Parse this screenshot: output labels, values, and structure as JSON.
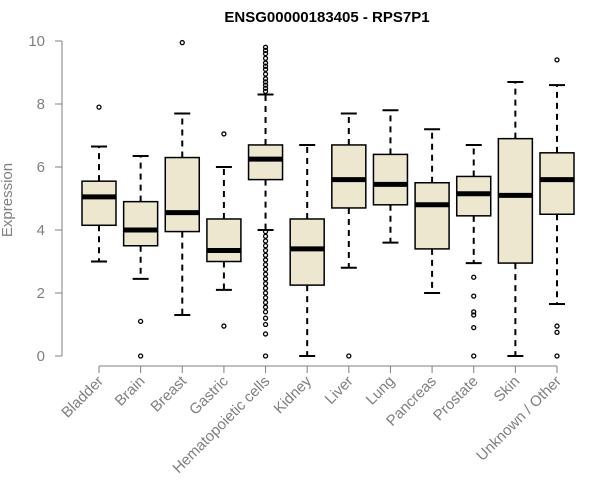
{
  "chart_data": {
    "type": "boxplot",
    "title": "ENSG00000183405 - RPS7P1",
    "xlabel": "",
    "ylabel": "Expression",
    "ylim": [
      0,
      10
    ],
    "yticks": [
      0,
      2,
      4,
      6,
      8,
      10
    ],
    "grid": false,
    "legend": "none",
    "colors": {
      "box_fill": "#ede7cf",
      "stroke": "#000000",
      "axis": "#7f7f7f"
    },
    "categories": [
      "Bladder",
      "Brain",
      "Breast",
      "Gastric",
      "Hematopoietic cells",
      "Kidney",
      "Liver",
      "Lung",
      "Pancreas",
      "Prostate",
      "Skin",
      "Unknown / Other"
    ],
    "boxes": [
      {
        "category": "Bladder",
        "lower_whisker": 3.0,
        "q1": 4.15,
        "median": 5.05,
        "q3": 5.55,
        "upper_whisker": 6.65,
        "outliers": [
          7.9
        ]
      },
      {
        "category": "Brain",
        "lower_whisker": 2.45,
        "q1": 3.5,
        "median": 4.0,
        "q3": 4.9,
        "upper_whisker": 6.35,
        "outliers": [
          1.1,
          0.0
        ]
      },
      {
        "category": "Breast",
        "lower_whisker": 1.3,
        "q1": 3.95,
        "median": 4.55,
        "q3": 6.3,
        "upper_whisker": 7.7,
        "outliers": [
          9.95
        ]
      },
      {
        "category": "Gastric",
        "lower_whisker": 2.1,
        "q1": 3.0,
        "median": 3.35,
        "q3": 4.35,
        "upper_whisker": 6.0,
        "outliers": [
          7.05,
          0.95
        ]
      },
      {
        "category": "Hematopoietic cells",
        "lower_whisker": 4.0,
        "q1": 5.6,
        "median": 6.25,
        "q3": 6.7,
        "upper_whisker": 8.3,
        "outliers": [
          9.8,
          9.7,
          9.6,
          9.45,
          9.3,
          9.2,
          9.1,
          8.95,
          8.8,
          8.7,
          8.6,
          8.5,
          8.4,
          3.95,
          3.8,
          3.65,
          3.5,
          3.35,
          3.2,
          3.05,
          2.9,
          2.75,
          2.6,
          2.45,
          2.3,
          2.15,
          2.0,
          1.85,
          1.7,
          1.55,
          1.4,
          1.2,
          1.0,
          0.7,
          0.0
        ]
      },
      {
        "category": "Kidney",
        "lower_whisker": 0.0,
        "q1": 2.25,
        "median": 3.4,
        "q3": 4.35,
        "upper_whisker": 6.7,
        "outliers": []
      },
      {
        "category": "Liver",
        "lower_whisker": 2.8,
        "q1": 4.7,
        "median": 5.6,
        "q3": 6.7,
        "upper_whisker": 7.7,
        "outliers": [
          0.0
        ]
      },
      {
        "category": "Lung",
        "lower_whisker": 3.6,
        "q1": 4.8,
        "median": 5.45,
        "q3": 6.4,
        "upper_whisker": 7.8,
        "outliers": []
      },
      {
        "category": "Pancreas",
        "lower_whisker": 2.0,
        "q1": 3.4,
        "median": 4.8,
        "q3": 5.5,
        "upper_whisker": 7.2,
        "outliers": []
      },
      {
        "category": "Prostate",
        "lower_whisker": 2.95,
        "q1": 4.45,
        "median": 5.15,
        "q3": 5.7,
        "upper_whisker": 6.7,
        "outliers": [
          2.5,
          1.9,
          1.4,
          1.3,
          0.9,
          0.0
        ]
      },
      {
        "category": "Skin",
        "lower_whisker": 0.0,
        "q1": 2.95,
        "median": 5.1,
        "q3": 6.9,
        "upper_whisker": 8.7,
        "outliers": []
      },
      {
        "category": "Unknown / Other",
        "lower_whisker": 1.65,
        "q1": 4.5,
        "median": 5.6,
        "q3": 6.45,
        "upper_whisker": 8.6,
        "outliers": [
          9.4,
          0.95,
          0.75,
          0.0
        ]
      }
    ]
  }
}
